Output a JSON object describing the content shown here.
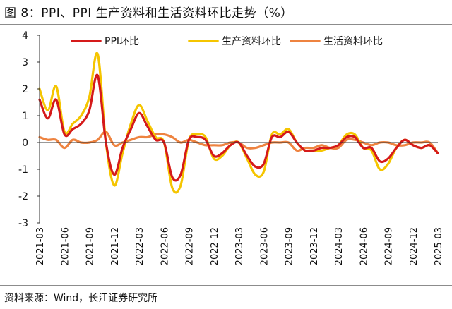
{
  "figure": {
    "title": "图 8：PPI、PPI 生产资料和生活资料环比走势（%）",
    "source": "资料来源：Wind，长江证券研究所"
  },
  "colors": {
    "ppi": "#d51a1a",
    "production": "#f5c500",
    "living": "#ee8340",
    "axis": "#333333"
  },
  "chart_data": {
    "type": "line",
    "title": "",
    "xlabel": "",
    "ylabel": "",
    "ylim": [
      -3,
      4
    ],
    "yticks": [
      -3,
      -2,
      -1,
      0,
      1,
      2,
      3,
      4
    ],
    "grid": false,
    "legend_position": "top",
    "x": [
      "2021-03",
      "2021-04",
      "2021-05",
      "2021-06",
      "2021-07",
      "2021-08",
      "2021-09",
      "2021-10",
      "2021-11",
      "2021-12",
      "2022-01",
      "2022-02",
      "2022-03",
      "2022-04",
      "2022-05",
      "2022-06",
      "2022-07",
      "2022-08",
      "2022-09",
      "2022-10",
      "2022-11",
      "2022-12",
      "2023-01",
      "2023-02",
      "2023-03",
      "2023-04",
      "2023-05",
      "2023-06",
      "2023-07",
      "2023-08",
      "2023-09",
      "2023-10",
      "2023-11",
      "2023-12",
      "2024-01",
      "2024-02",
      "2024-03",
      "2024-04",
      "2024-05",
      "2024-06",
      "2024-07",
      "2024-08",
      "2024-09",
      "2024-10",
      "2024-11",
      "2024-12",
      "2025-01",
      "2025-02",
      "2025-03"
    ],
    "x_tick_labels": [
      "2021-03",
      "2021-06",
      "2021-09",
      "2021-12",
      "2022-03",
      "2022-06",
      "2022-09",
      "2022-12",
      "2023-03",
      "2023-06",
      "2023-09",
      "2023-12",
      "2024-03",
      "2024-06",
      "2024-09",
      "2024-12",
      "2025-03"
    ],
    "series": [
      {
        "name": "PPI环比",
        "values": [
          1.6,
          0.9,
          1.6,
          0.3,
          0.5,
          0.7,
          1.2,
          2.5,
          0.0,
          -1.2,
          -0.2,
          0.5,
          1.1,
          0.6,
          0.1,
          0.0,
          -1.3,
          -1.2,
          0.1,
          0.2,
          0.1,
          -0.5,
          -0.4,
          -0.1,
          0.0,
          -0.5,
          -0.9,
          -0.8,
          0.2,
          0.2,
          0.4,
          0.0,
          -0.3,
          -0.3,
          -0.2,
          -0.2,
          -0.1,
          0.2,
          0.2,
          -0.2,
          -0.2,
          -0.7,
          -0.6,
          -0.2,
          0.1,
          -0.1,
          -0.2,
          -0.1,
          -0.4
        ]
      },
      {
        "name": "生产资料环比",
        "values": [
          2.0,
          1.2,
          2.1,
          0.4,
          0.7,
          1.0,
          1.7,
          3.3,
          0.0,
          -1.6,
          -0.4,
          0.7,
          1.4,
          0.8,
          0.2,
          0.0,
          -1.7,
          -1.6,
          0.1,
          0.3,
          0.2,
          -0.6,
          -0.5,
          -0.1,
          0.0,
          -0.6,
          -1.2,
          -1.1,
          0.3,
          0.3,
          0.5,
          0.0,
          -0.3,
          -0.3,
          -0.3,
          -0.2,
          -0.1,
          0.3,
          0.3,
          -0.2,
          -0.3,
          -1.0,
          -0.8,
          -0.2,
          0.1,
          -0.1,
          -0.2,
          -0.1,
          -0.4
        ]
      },
      {
        "name": "生活资料环比",
        "values": [
          0.2,
          0.1,
          0.1,
          -0.2,
          0.1,
          0.0,
          0.0,
          0.1,
          0.4,
          -0.1,
          0.0,
          0.1,
          0.2,
          0.2,
          0.3,
          0.3,
          0.2,
          0.0,
          0.1,
          0.0,
          -0.1,
          -0.1,
          -0.1,
          0.0,
          0.0,
          -0.2,
          -0.2,
          -0.1,
          0.0,
          0.0,
          0.0,
          -0.3,
          -0.2,
          -0.2,
          -0.1,
          -0.2,
          -0.2,
          0.1,
          0.1,
          0.0,
          -0.1,
          0.0,
          0.0,
          -0.1,
          -0.1,
          0.0,
          0.0,
          0.0,
          -0.4
        ]
      }
    ]
  }
}
